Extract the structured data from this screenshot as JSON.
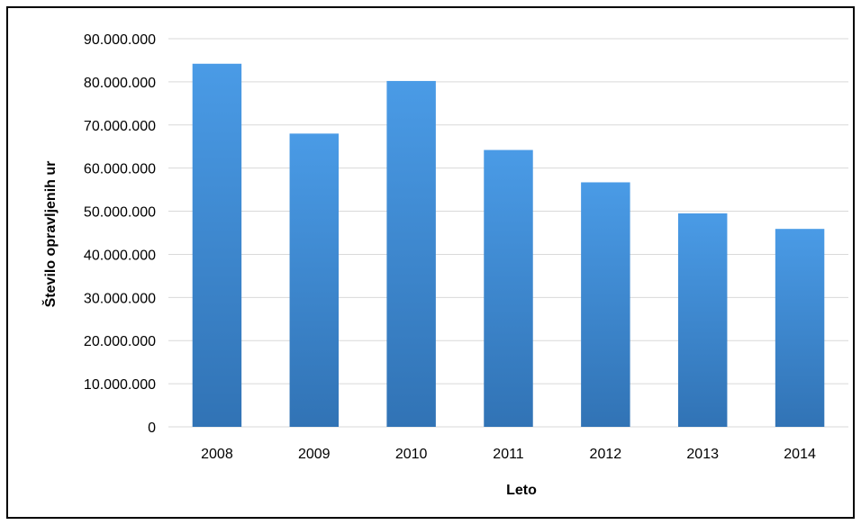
{
  "chart_data": {
    "type": "bar",
    "title": "",
    "xlabel": "Leto",
    "ylabel": "Število opravljenih ur",
    "categories": [
      "2008",
      "2009",
      "2010",
      "2011",
      "2012",
      "2013",
      "2014"
    ],
    "values": [
      84200000,
      68000000,
      80200000,
      64200000,
      56700000,
      49500000,
      45900000
    ],
    "ylim": [
      0,
      90000000
    ],
    "yticks": [
      0,
      10000000,
      20000000,
      30000000,
      40000000,
      50000000,
      60000000,
      70000000,
      80000000,
      90000000
    ],
    "ytick_labels": [
      "0",
      "10.000.000",
      "20.000.000",
      "30.000.000",
      "40.000.000",
      "50.000.000",
      "60.000.000",
      "70.000.000",
      "80.000.000",
      "90.000.000"
    ],
    "grid": true,
    "legend": "none",
    "colors": {
      "bar_top": "#4A9BE6",
      "bar_bottom": "#3173B5",
      "grid": "#D9D9D9",
      "axis": "#D9D9D9"
    }
  }
}
